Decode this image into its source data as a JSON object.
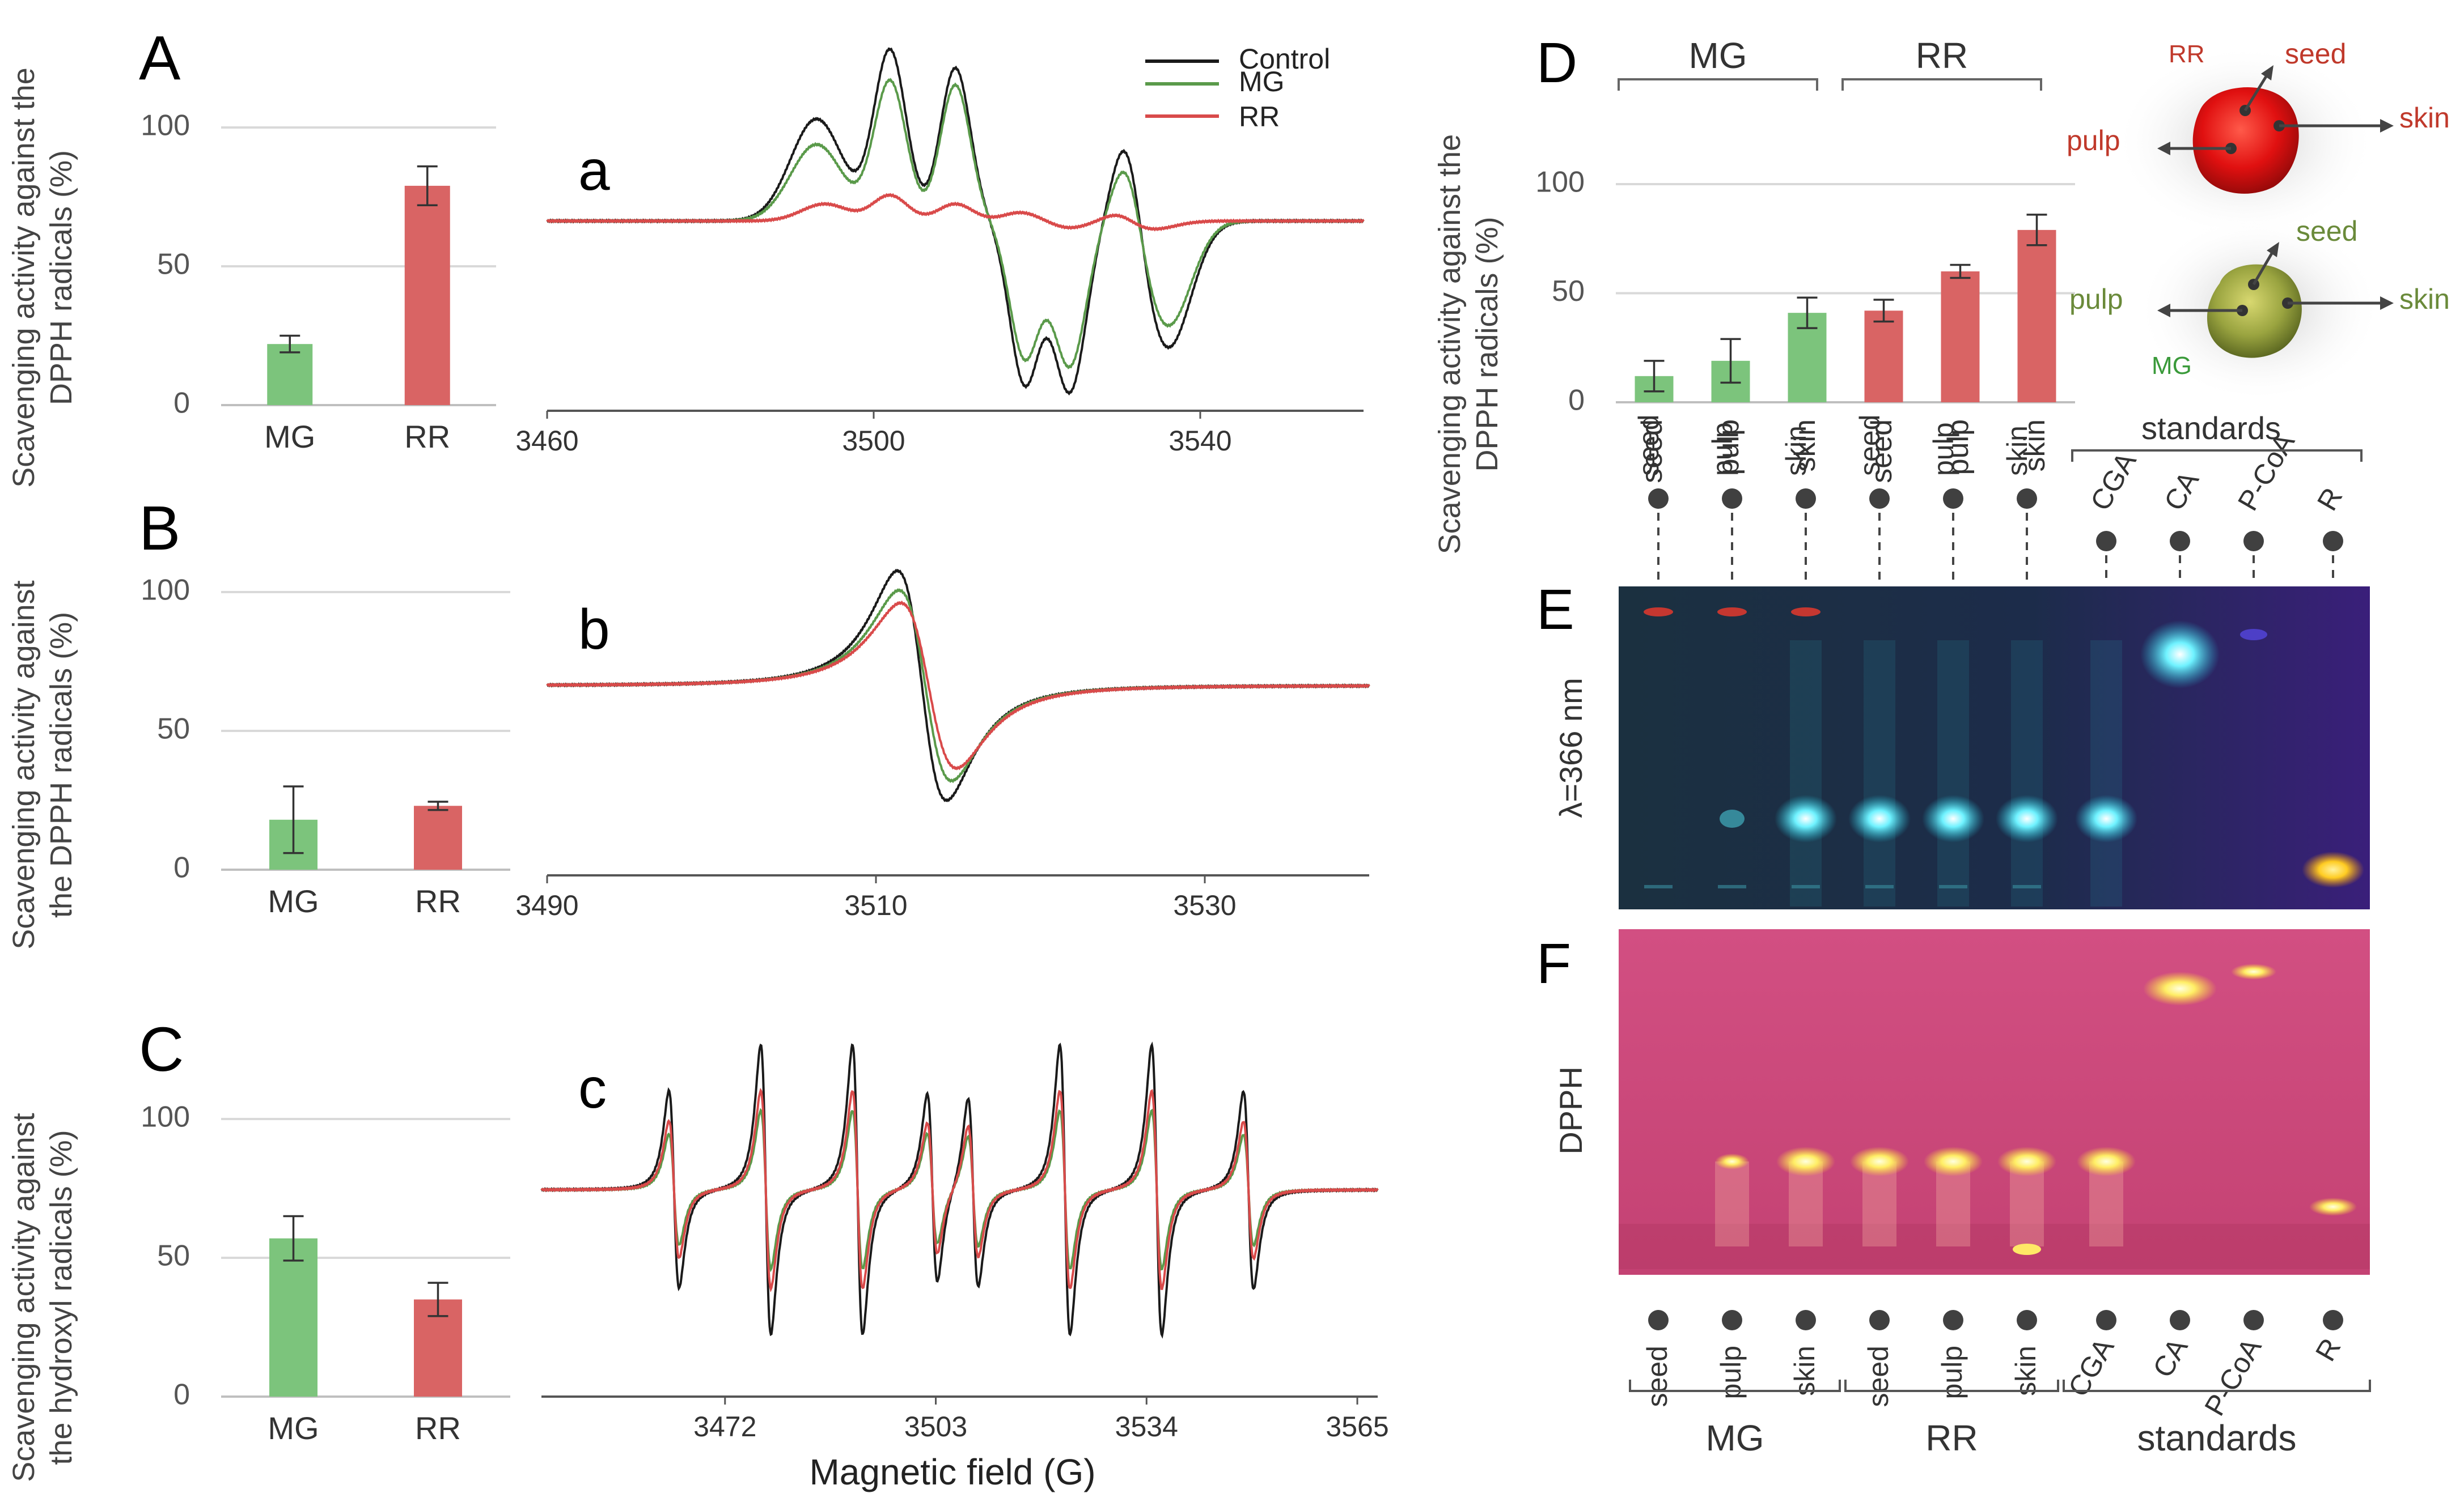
{
  "colors": {
    "green": "#7cc47c",
    "red": "#d96464",
    "control_line": "#1a1a1a",
    "mg_line": "#5a9a4a",
    "rr_line": "#d94a4a",
    "grid": "#d9d9d9",
    "label_green": "#6a8a3a",
    "label_red": "#c0392b",
    "tlc_uv_bg": "#1e2a3c",
    "tlc_dpph_bg": "#cc4a7a"
  },
  "panels": {
    "A": "A",
    "B": "B",
    "C": "C",
    "D": "D",
    "E": "E",
    "F": "F",
    "a": "a",
    "b": "b",
    "c": "c"
  },
  "legend": [
    "Control",
    "MG",
    "RR"
  ],
  "epr_xlabel": "Magnetic field (G)",
  "chart_data": [
    {
      "id": "A",
      "type": "bar",
      "ylabel": "Scavenging activity against the DPPH radicals (%)",
      "ylabel_lines": [
        "Scavenging activity against the",
        "DPPH radicals (%)"
      ],
      "categories": [
        "MG",
        "RR"
      ],
      "values": [
        22,
        79
      ],
      "errors": [
        3,
        7
      ],
      "ylim": [
        0,
        100
      ],
      "yticks": [
        0,
        50,
        100
      ],
      "grid": true
    },
    {
      "id": "B",
      "type": "bar",
      "ylabel": "Scavenging activity against the DPPH radicals (%)",
      "ylabel_lines": [
        "Scavenging activity against",
        "the DPPH radicals (%)"
      ],
      "categories": [
        "MG",
        "RR"
      ],
      "values": [
        18,
        23
      ],
      "errors": [
        12,
        1.5
      ],
      "ylim": [
        0,
        100
      ],
      "yticks": [
        0,
        50,
        100
      ],
      "grid": true
    },
    {
      "id": "C",
      "type": "bar",
      "ylabel": "Scavenging activity against the hydroxyl radicals (%)",
      "ylabel_lines": [
        "Scavenging activity against",
        "the hydroxyl radicals (%)"
      ],
      "categories": [
        "MG",
        "RR"
      ],
      "values": [
        57,
        35
      ],
      "errors": [
        8,
        6
      ],
      "ylim": [
        0,
        100
      ],
      "yticks": [
        0,
        50,
        100
      ],
      "grid": true
    },
    {
      "id": "a",
      "type": "line",
      "xlim": [
        3460,
        3560
      ],
      "xticks": [
        3460,
        3500,
        3540
      ],
      "series": [
        {
          "name": "Control",
          "peaks": [
            [
              3493,
              0.6,
              4.5
            ],
            [
              3502,
              1.0,
              2.8
            ],
            [
              3510,
              0.9,
              2.6
            ],
            [
              3518.5,
              -0.95,
              2.6
            ],
            [
              3524,
              -1.0,
              2.8
            ],
            [
              3531,
              0.55,
              2.4
            ],
            [
              3536,
              -0.75,
              4
            ]
          ]
        },
        {
          "name": "MG",
          "peaks": [
            [
              3493,
              0.45,
              4.5
            ],
            [
              3502,
              0.82,
              2.8
            ],
            [
              3510,
              0.8,
              2.6
            ],
            [
              3518.5,
              -0.8,
              2.6
            ],
            [
              3524,
              -0.85,
              2.8
            ],
            [
              3531,
              0.4,
              2.4
            ],
            [
              3536,
              -0.62,
              4
            ]
          ]
        },
        {
          "name": "RR",
          "peaks": [
            [
              3494,
              0.1,
              4
            ],
            [
              3502,
              0.15,
              3
            ],
            [
              3510,
              0.1,
              3
            ],
            [
              3518,
              0.05,
              3
            ],
            [
              3524,
              -0.04,
              3
            ],
            [
              3530,
              0.05,
              2.5
            ],
            [
              3534,
              -0.05,
              4
            ]
          ]
        }
      ]
    },
    {
      "id": "b",
      "type": "line",
      "xlim": [
        3490,
        3540
      ],
      "xticks": [
        3490,
        3510,
        3530
      ],
      "series": [
        {
          "name": "Control",
          "center": 3512.8,
          "amp": 1.0,
          "width": 1.5
        },
        {
          "name": "MG",
          "center": 3513,
          "amp": 0.83,
          "width": 1.6
        },
        {
          "name": "RR",
          "center": 3513.2,
          "amp": 0.72,
          "width": 1.7
        }
      ]
    },
    {
      "id": "c",
      "type": "line",
      "xlim": [
        3445,
        3568
      ],
      "xticks": [
        3472,
        3503,
        3534,
        3565
      ],
      "lines": [
        3464.5,
        3478,
        3491.5,
        3502.5,
        3508.5,
        3522,
        3535.5,
        3549
      ],
      "series": [
        {
          "name": "Control",
          "amps": [
            0.75,
            1.1,
            1.1,
            0.72,
            0.72,
            1.1,
            1.1,
            0.75
          ]
        },
        {
          "name": "MG",
          "amps": [
            0.42,
            0.6,
            0.6,
            0.42,
            0.42,
            0.6,
            0.6,
            0.42
          ]
        },
        {
          "name": "RR",
          "amps": [
            0.52,
            0.75,
            0.75,
            0.5,
            0.5,
            0.75,
            0.75,
            0.52
          ]
        }
      ]
    },
    {
      "id": "D",
      "type": "bar",
      "ylabel": "Scavenging activity against the DPPH radicals (%)",
      "ylabel_lines": [
        "Scavenging activity against the",
        "DPPH radicals (%)"
      ],
      "group_labels": [
        "MG",
        "RR"
      ],
      "categories": [
        "seed",
        "pulp",
        "skin",
        "seed",
        "pulp",
        "skin"
      ],
      "groups": [
        "MG",
        "MG",
        "MG",
        "RR",
        "RR",
        "RR"
      ],
      "values": [
        12,
        19,
        41,
        42,
        60,
        79
      ],
      "errors": [
        7,
        10,
        7,
        5,
        3,
        7
      ],
      "ylim": [
        0,
        100
      ],
      "yticks": [
        0,
        50,
        100
      ],
      "grid": true
    }
  ],
  "fruit_labels": {
    "RR": {
      "tag": "RR",
      "seed": "seed",
      "pulp": "pulp",
      "skin": "skin"
    },
    "MG": {
      "tag": "MG",
      "seed": "seed",
      "pulp": "pulp",
      "skin": "skin"
    }
  },
  "tlc": {
    "E_label": "λ=366 nm",
    "F_label": "DPPH",
    "standards_label": "standards",
    "lanes": [
      "seed",
      "pulp",
      "skin",
      "seed",
      "pulp",
      "skin",
      "CGA",
      "CA",
      "P-CoA",
      "R"
    ],
    "bottom_groups": [
      "MG",
      "RR",
      "standards"
    ]
  }
}
